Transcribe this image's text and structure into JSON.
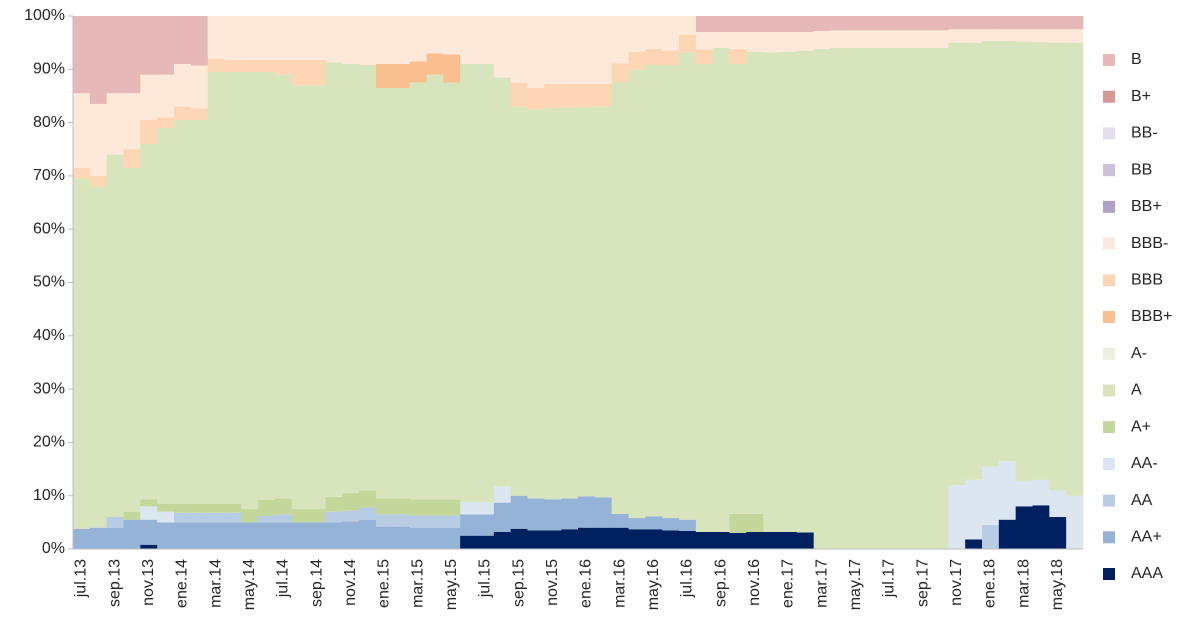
{
  "chart_data": {
    "type": "stacked-step-area",
    "categories": [
      "jul.13",
      null,
      "sep.13",
      null,
      "nov.13",
      null,
      "ene.14",
      null,
      "mar.14",
      null,
      "may.14",
      null,
      "jul.14",
      null,
      "sep.14",
      null,
      "nov.14",
      null,
      "ene.15",
      null,
      "mar.15",
      null,
      "may.15",
      null,
      "jul.15",
      null,
      "sep.15",
      null,
      "nov.15",
      null,
      "ene.16",
      null,
      "mar.16",
      null,
      "may.16",
      null,
      "jul.16",
      null,
      "sep.16",
      null,
      "nov.16",
      null,
      "ene.17",
      null,
      "mar.17",
      null,
      "may.17",
      null,
      "jul.17",
      null,
      "sep.17",
      null,
      "nov.17",
      null,
      "ene.18",
      null,
      "mar.18",
      null,
      "may.18",
      null
    ],
    "ylim": [
      0,
      100
    ],
    "yticks": [
      {
        "value": 0,
        "label": "0%"
      },
      {
        "value": 10,
        "label": "10%"
      },
      {
        "value": 20,
        "label": "20%"
      },
      {
        "value": 30,
        "label": "30%"
      },
      {
        "value": 40,
        "label": "40%"
      },
      {
        "value": 50,
        "label": "50%"
      },
      {
        "value": 60,
        "label": "60%"
      },
      {
        "value": 70,
        "label": "70%"
      },
      {
        "value": 80,
        "label": "80%"
      },
      {
        "value": 90,
        "label": "90%"
      },
      {
        "value": 100,
        "label": "100%"
      }
    ],
    "grid": false,
    "legend": "right",
    "series": [
      {
        "name": "B",
        "color": "#e6b8b7",
        "values": [
          14.5,
          16.5,
          14.5,
          14.5,
          11,
          11,
          9,
          9.3,
          0,
          0,
          0,
          0,
          0,
          0,
          0,
          0,
          0,
          0,
          0,
          0,
          0,
          0,
          0,
          0,
          0,
          0,
          0,
          0,
          0,
          0,
          0,
          0,
          0,
          0,
          0,
          0,
          0,
          3,
          3,
          3,
          3,
          3,
          3,
          3,
          2.8,
          2.7,
          2.7,
          2.7,
          2.7,
          2.7,
          2.7,
          2.7,
          2.5,
          2.5,
          2.5,
          2.5,
          2.5,
          2.5,
          2.5,
          2.5
        ]
      },
      {
        "name": "B+",
        "color": "#da9694",
        "values": [
          0,
          0,
          0,
          0,
          0,
          0,
          0,
          0,
          0,
          0,
          0,
          0,
          0,
          0,
          0,
          0,
          0,
          0,
          0,
          0,
          0,
          0,
          0,
          0,
          0,
          0,
          0,
          0,
          0,
          0,
          0,
          0,
          0,
          0,
          0,
          0,
          0,
          0,
          0,
          0,
          0,
          0,
          0,
          0,
          0,
          0,
          0,
          0,
          0,
          0,
          0,
          0,
          0,
          0,
          0,
          0,
          0,
          0,
          0,
          0
        ]
      },
      {
        "name": "BB-",
        "color": "#e4dfec",
        "values": [
          0,
          0,
          0,
          0,
          0,
          0,
          0,
          0,
          0,
          0,
          0,
          0,
          0,
          0,
          0,
          0,
          0,
          0,
          0,
          0,
          0,
          0,
          0,
          0,
          0,
          0,
          0,
          0,
          0,
          0,
          0,
          0,
          0,
          0,
          0,
          0,
          0,
          0,
          0,
          0,
          0,
          0,
          0,
          0,
          0,
          0,
          0,
          0,
          0,
          0,
          0,
          0,
          0,
          0,
          0,
          0,
          0,
          0,
          0,
          0
        ]
      },
      {
        "name": "BB",
        "color": "#ccc0da",
        "values": [
          0,
          0,
          0,
          0,
          0,
          0,
          0,
          0,
          0,
          0,
          0,
          0,
          0,
          0,
          0,
          0,
          0,
          0,
          0,
          0,
          0,
          0,
          0,
          0,
          0,
          0,
          0,
          0,
          0,
          0,
          0,
          0,
          0,
          0,
          0,
          0,
          0,
          0,
          0,
          0,
          0,
          0,
          0,
          0,
          0,
          0,
          0,
          0,
          0,
          0,
          0,
          0,
          0,
          0,
          0,
          0,
          0,
          0,
          0,
          0
        ]
      },
      {
        "name": "BB+",
        "color": "#b1a0c7",
        "values": [
          0,
          0,
          0,
          0,
          0,
          0,
          0,
          0,
          0,
          0,
          0,
          0,
          0,
          0,
          0,
          0,
          0,
          0,
          0,
          0,
          0,
          0,
          0,
          0,
          0,
          0,
          0,
          0,
          0,
          0,
          0,
          0,
          0,
          0,
          0,
          0,
          0,
          0,
          0,
          0,
          0,
          0,
          0,
          0,
          0,
          0,
          0,
          0,
          0,
          0,
          0,
          0,
          0,
          0,
          0,
          0,
          0,
          0,
          0,
          0
        ]
      },
      {
        "name": "BBB-",
        "color": "#fde9d9",
        "values": [
          14,
          13.5,
          11.5,
          10.5,
          8.5,
          8,
          8,
          8,
          8,
          8.2,
          8.2,
          8.2,
          8.2,
          8.2,
          8.2,
          8.7,
          9,
          9.2,
          9,
          9,
          8.5,
          7,
          7.2,
          9,
          9,
          11.5,
          12.5,
          13.5,
          12.7,
          12.7,
          12.7,
          12.7,
          8.9,
          6.7,
          6.2,
          6.5,
          3.5,
          3.3,
          3,
          3.2,
          3.7,
          3.8,
          3.7,
          3.5,
          3.4,
          3.3,
          3.3,
          3.3,
          3.3,
          3.3,
          3.3,
          3.3,
          2.5,
          2.5,
          2.2,
          2.2,
          2.3,
          2.4,
          2.5,
          2.5
        ]
      },
      {
        "name": "BBB",
        "color": "#fcd5b4",
        "values": [
          2,
          2,
          0,
          3.5,
          4.5,
          2,
          2.5,
          2.2,
          2.5,
          2.3,
          2.3,
          2.3,
          2.8,
          4.8,
          4.8,
          0,
          0,
          0,
          0,
          0,
          0,
          0,
          0,
          0,
          0,
          0,
          4.5,
          4,
          4.5,
          4.5,
          4.4,
          4.3,
          3.5,
          3.3,
          3,
          2.7,
          3.3,
          2.7,
          0,
          2.8,
          0,
          0,
          0,
          0,
          0,
          0,
          0,
          0,
          0,
          0,
          0,
          0,
          0,
          0,
          0,
          0,
          0,
          0,
          0,
          0
        ]
      },
      {
        "name": "BBB+",
        "color": "#fabf8f",
        "values": [
          0,
          0,
          0,
          0,
          0,
          0,
          0,
          0,
          0,
          0,
          0,
          0,
          0,
          0,
          0,
          0,
          0,
          0,
          4.5,
          4.5,
          4,
          4,
          5.3,
          0,
          0,
          0,
          0,
          0,
          0,
          0,
          0,
          0,
          0,
          0,
          0,
          0,
          0,
          0,
          0,
          0,
          0,
          0,
          0,
          0,
          0,
          0,
          0,
          0,
          0,
          0,
          0,
          0,
          0,
          0,
          0,
          0,
          0,
          0,
          0,
          0
        ]
      },
      {
        "name": "A-",
        "color": "#ebf1de",
        "values": [
          0,
          0,
          0,
          0,
          0,
          0,
          0,
          0,
          0,
          0,
          0,
          0,
          0,
          0,
          0,
          0,
          0,
          0,
          0,
          0,
          0,
          0,
          0,
          0,
          0,
          0,
          0,
          0,
          0,
          0,
          0,
          0,
          0,
          0,
          0,
          0,
          0,
          0,
          0,
          0,
          0,
          0,
          0,
          0,
          0,
          0,
          0,
          0,
          0,
          0,
          0,
          0,
          0,
          0,
          0,
          0,
          0,
          0,
          0,
          0
        ]
      },
      {
        "name": "A",
        "color": "#d8e4bc",
        "values": [
          65.7,
          64,
          68,
          64.5,
          66.7,
          70.5,
          72,
          72,
          81,
          81,
          82,
          80.3,
          79.5,
          79.5,
          79.5,
          81.5,
          80.5,
          79.8,
          77,
          77,
          78.2,
          79.7,
          78.2,
          82.2,
          82.2,
          76.8,
          73,
          73,
          73.5,
          73.3,
          73,
          73.3,
          81,
          84.2,
          84.7,
          85,
          87.7,
          87.8,
          90.8,
          84.4,
          86.7,
          90,
          90.1,
          90.4,
          93.8,
          94,
          94,
          94,
          94,
          94,
          94,
          94,
          83,
          82,
          79.8,
          78.8,
          82.4,
          82.1,
          84,
          85
        ]
      },
      {
        "name": "A+",
        "color": "#c4d79b",
        "values": [
          0,
          0,
          0,
          1.5,
          1.3,
          1.5,
          1.7,
          1.7,
          1.7,
          1.7,
          2.5,
          3,
          3,
          2.5,
          2.5,
          2.8,
          3.3,
          3.2,
          3,
          3,
          3,
          3,
          3,
          0,
          0,
          0,
          0,
          0,
          0,
          0,
          0,
          0,
          0,
          0,
          0,
          0,
          0,
          0,
          0,
          3.6,
          3.4,
          0,
          0,
          0,
          0,
          0,
          0,
          0,
          0,
          0,
          0,
          0,
          0,
          0,
          0,
          0,
          0,
          0,
          0,
          0
        ]
      },
      {
        "name": "AA-",
        "color": "#dce6f1",
        "values": [
          0,
          0,
          0,
          0,
          2.5,
          2,
          0,
          0,
          0,
          0,
          0,
          0,
          0,
          0,
          0,
          0,
          0,
          0,
          0,
          0,
          0,
          0,
          0,
          2.3,
          2.3,
          3,
          0,
          0,
          0,
          0,
          0,
          0,
          0,
          0,
          0,
          0,
          0,
          0,
          0,
          0,
          0,
          0,
          0,
          0,
          0,
          0,
          0,
          0,
          0,
          0,
          0,
          0,
          12,
          11.2,
          11,
          11,
          4.8,
          4.8,
          5,
          10
        ]
      },
      {
        "name": "AA",
        "color": "#b8cce4",
        "values": [
          0,
          0,
          2,
          0,
          0,
          0,
          1.8,
          1.8,
          1.8,
          1.8,
          0,
          1.2,
          1.5,
          0,
          0,
          2,
          2,
          2.3,
          2.3,
          2.3,
          2.3,
          2.3,
          2.3,
          0,
          0,
          0,
          0,
          0,
          0,
          0,
          0,
          0,
          0,
          0,
          0,
          0,
          0,
          0,
          0,
          0,
          0,
          0,
          0,
          0,
          0,
          0,
          0,
          0,
          0,
          0,
          0,
          0,
          0,
          0,
          4.5,
          0,
          0,
          0,
          0,
          0
        ]
      },
      {
        "name": "AA+",
        "color": "#95b3d7",
        "values": [
          3.8,
          4,
          4,
          5.5,
          4.7,
          5,
          5,
          5,
          5,
          5,
          5,
          5,
          5,
          5,
          5,
          5,
          5.2,
          5.5,
          4.2,
          4.2,
          4,
          4,
          4,
          4,
          4,
          5.5,
          6.2,
          6,
          5.8,
          5.8,
          5.9,
          5.7,
          2.6,
          2.1,
          2.4,
          2.3,
          2.1,
          0,
          0,
          0,
          0,
          0,
          0,
          0,
          0,
          0,
          0,
          0,
          0,
          0,
          0,
          0,
          0,
          0,
          0,
          0,
          0,
          0,
          0,
          0
        ]
      },
      {
        "name": "AAA",
        "color": "#002060",
        "values": [
          0,
          0,
          0,
          0,
          0.8,
          0,
          0,
          0,
          0,
          0,
          0,
          0,
          0,
          0,
          0,
          0,
          0,
          0,
          0,
          0,
          0,
          0,
          0,
          2.5,
          2.5,
          3.2,
          3.8,
          3.5,
          3.5,
          3.7,
          4,
          4,
          4,
          3.7,
          3.7,
          3.5,
          3.4,
          3.2,
          3.2,
          3,
          3.2,
          3.2,
          3.2,
          3.1,
          0,
          0,
          0,
          0,
          0,
          0,
          0,
          0,
          0,
          1.8,
          0,
          5.5,
          8,
          8.2,
          6,
          0
        ]
      }
    ]
  }
}
